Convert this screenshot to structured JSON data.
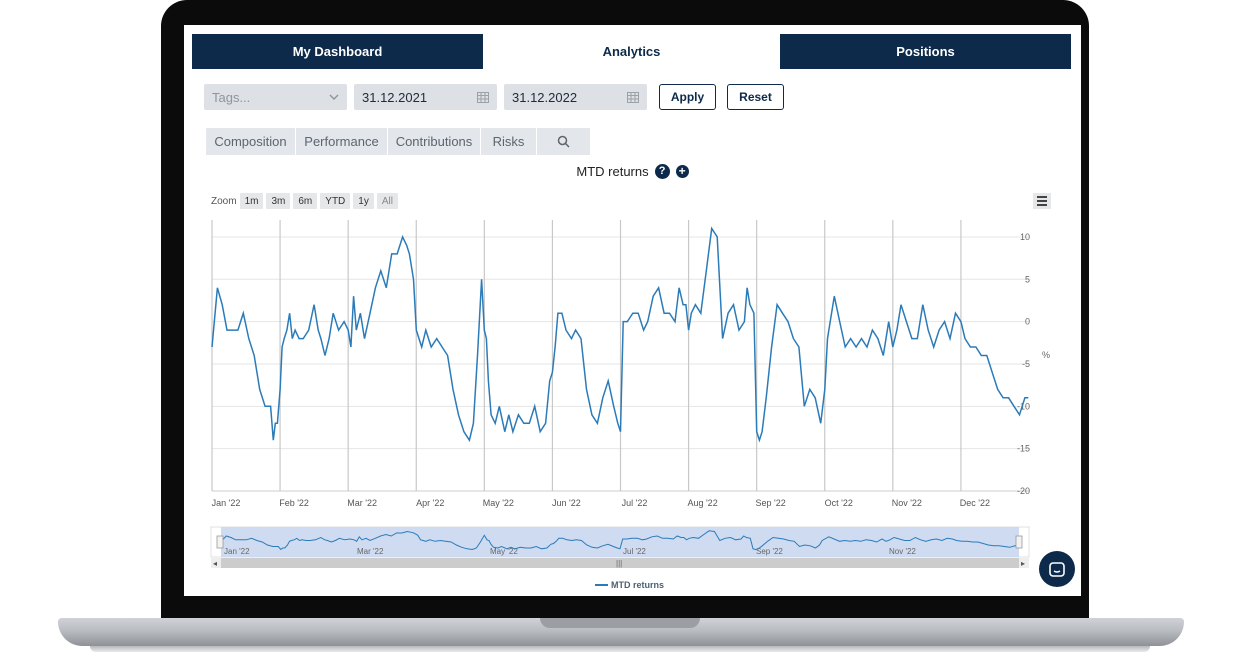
{
  "tabs": [
    {
      "label": "My Dashboard"
    },
    {
      "label": "Analytics"
    },
    {
      "label": "Positions"
    }
  ],
  "filters": {
    "tags_placeholder": "Tags...",
    "start_date": "31.12.2021",
    "end_date": "31.12.2022",
    "apply_label": "Apply",
    "reset_label": "Reset"
  },
  "subtabs": [
    {
      "label": "Composition"
    },
    {
      "label": "Performance"
    },
    {
      "label": "Contributions"
    },
    {
      "label": "Risks"
    }
  ],
  "chart_header": {
    "title": "MTD returns",
    "help_icon": "question-circle-icon",
    "add_icon": "plus-circle-icon"
  },
  "zoom": {
    "label": "Zoom",
    "buttons": [
      "1m",
      "3m",
      "6m",
      "YTD",
      "1y",
      "All"
    ]
  },
  "navigator": {
    "labels": [
      "Jan '22",
      "Mar '22",
      "May '22",
      "Jul '22",
      "Sep '22",
      "Nov '22"
    ]
  },
  "colors": {
    "navy": "#0d2a4a",
    "line": "#2b7bb9",
    "navigator_fill": "#c5d5ee"
  },
  "chart_data": {
    "type": "line",
    "title": "MTD returns",
    "xlabel": "",
    "ylabel": "%",
    "x_ticks": [
      "Jan '22",
      "Feb '22",
      "Mar '22",
      "Apr '22",
      "May '22",
      "Jun '22",
      "Jul '22",
      "Aug '22",
      "Sep '22",
      "Oct '22",
      "Nov '22",
      "Dec '22"
    ],
    "y_ticks": [
      10,
      5,
      0,
      -5,
      -10,
      -15,
      -20
    ],
    "ylim": [
      -20,
      12
    ],
    "xlim": [
      0,
      12
    ],
    "legend": "bottom-center",
    "series": [
      {
        "name": "MTD returns",
        "x": [
          0.0,
          0.08,
          0.15,
          0.22,
          0.3,
          0.38,
          0.46,
          0.54,
          0.62,
          0.7,
          0.78,
          0.86,
          0.9,
          0.93,
          0.96,
          1.0,
          1.03,
          1.06,
          1.1,
          1.14,
          1.18,
          1.22,
          1.28,
          1.34,
          1.42,
          1.5,
          1.56,
          1.6,
          1.66,
          1.72,
          1.78,
          1.86,
          1.94,
          2.0,
          2.04,
          2.08,
          2.12,
          2.18,
          2.24,
          2.32,
          2.4,
          2.48,
          2.56,
          2.64,
          2.72,
          2.8,
          2.86,
          2.9,
          2.96,
          3.0,
          3.04,
          3.08,
          3.14,
          3.22,
          3.3,
          3.38,
          3.46,
          3.54,
          3.62,
          3.7,
          3.78,
          3.84,
          3.9,
          3.96,
          4.0,
          4.03,
          4.06,
          4.1,
          4.16,
          4.22,
          4.3,
          4.36,
          4.42,
          4.5,
          4.58,
          4.66,
          4.74,
          4.82,
          4.9,
          4.96,
          5.0,
          5.04,
          5.08,
          5.14,
          5.2,
          5.28,
          5.34,
          5.42,
          5.5,
          5.58,
          5.66,
          5.74,
          5.82,
          5.9,
          5.96,
          6.0,
          6.04,
          6.1,
          6.18,
          6.26,
          6.34,
          6.4,
          6.48,
          6.56,
          6.64,
          6.72,
          6.8,
          6.86,
          6.92,
          6.96,
          7.0,
          7.04,
          7.1,
          7.18,
          7.26,
          7.34,
          7.42,
          7.5,
          7.58,
          7.66,
          7.74,
          7.82,
          7.86,
          7.9,
          7.96,
          8.0,
          8.04,
          8.08,
          8.14,
          8.22,
          8.3,
          8.38,
          8.46,
          8.54,
          8.62,
          8.7,
          8.78,
          8.86,
          8.94,
          9.0,
          9.04,
          9.08,
          9.14,
          9.22,
          9.3,
          9.38,
          9.46,
          9.54,
          9.62,
          9.7,
          9.78,
          9.86,
          9.94,
          10.0,
          10.06,
          10.12,
          10.2,
          10.28,
          10.36,
          10.44,
          10.52,
          10.6,
          10.68,
          10.76,
          10.84,
          10.92,
          11.0,
          11.06,
          11.14,
          11.22,
          11.3,
          11.38,
          11.46,
          11.54,
          11.62,
          11.7,
          11.78,
          11.86,
          11.94,
          11.99
        ],
        "values": [
          -3,
          4,
          2,
          -1,
          -1,
          -1,
          1,
          -2,
          -4,
          -8,
          -10,
          -10,
          -14,
          -12,
          -12,
          -8,
          -3,
          -2,
          -1,
          1,
          -2,
          -1,
          -2,
          -2,
          -1,
          2,
          -1,
          -2,
          -4,
          -2,
          1,
          -1,
          0,
          -1,
          -3,
          3,
          -1,
          1,
          -2,
          1,
          4,
          6,
          4,
          8,
          8,
          10,
          9,
          8,
          5,
          -1,
          -2,
          -3,
          -1,
          -3,
          -2,
          -3,
          -4,
          -8,
          -11,
          -13,
          -14,
          -12,
          -4,
          5,
          -1,
          -2,
          -7,
          -11,
          -12,
          -10,
          -13,
          -11,
          -13,
          -11,
          -12,
          -12,
          -10,
          -13,
          -12,
          -7,
          -6,
          -3,
          1,
          1,
          -1,
          -2,
          -1,
          -2,
          -8,
          -11,
          -12,
          -9,
          -7,
          -10,
          -12,
          -13,
          0,
          0,
          1,
          1,
          -1,
          0,
          3,
          4,
          1,
          1,
          0,
          4,
          2,
          2,
          -1,
          1,
          2,
          1,
          6,
          11,
          10,
          -2,
          1,
          2,
          -1,
          0,
          4,
          2,
          1,
          -13,
          -14,
          -13,
          -9,
          -3,
          2,
          1,
          0,
          -2,
          -3,
          -10,
          -8,
          -9,
          -12,
          -8,
          -2,
          0,
          3,
          0,
          -3,
          -2,
          -3,
          -2,
          -3,
          -1,
          -2,
          -4,
          0,
          -3,
          -1,
          2,
          0,
          -2,
          -2,
          2,
          -1,
          -3,
          -1,
          0,
          -2,
          1,
          0,
          -2,
          -3,
          -3,
          -4,
          -4,
          -6,
          -8,
          -9,
          -9,
          -10,
          -11,
          -9,
          -9
        ]
      }
    ]
  }
}
